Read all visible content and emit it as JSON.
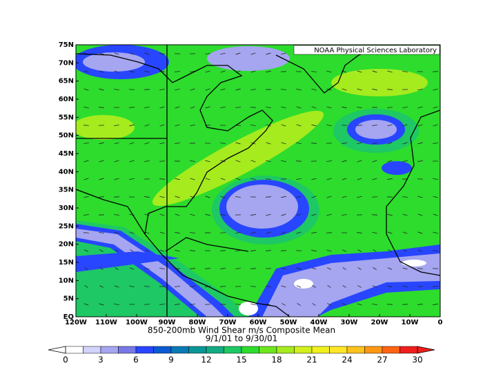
{
  "map": {
    "title": "850-200mb Wind Shear m/s Composite Mean",
    "subtitle": "9/1/01  to 9/30/01",
    "credit": "NOAA Physical Sciences Laboratory",
    "lon_labels": [
      "120W",
      "110W",
      "100W",
      "90W",
      "80W",
      "70W",
      "60W",
      "50W",
      "40W",
      "30W",
      "20W",
      "10W",
      "0"
    ],
    "lat_labels": [
      "75N",
      "70N",
      "65N",
      "60N",
      "55N",
      "50N",
      "45N",
      "40N",
      "35N",
      "30N",
      "25N",
      "20N",
      "15N",
      "10N",
      "5N",
      "EQ"
    ],
    "colorbar": {
      "ticks": [
        0,
        3,
        6,
        9,
        12,
        15,
        18,
        21,
        24,
        27,
        30
      ],
      "colors": [
        "#ffffff",
        "#d2d2fa",
        "#a5a5f0",
        "#7878e6",
        "#2846ff",
        "#0a5ad2",
        "#0a7ab4",
        "#0a9696",
        "#14aa82",
        "#1ec864",
        "#2ddc2d",
        "#6ee61e",
        "#a5eb1e",
        "#d2f01e",
        "#f0f01e",
        "#ffe628",
        "#ffc31e",
        "#ff9614",
        "#ff6414",
        "#f01e1e"
      ],
      "under_color": "#ffffff",
      "over_color": "#f01e1e"
    }
  }
}
